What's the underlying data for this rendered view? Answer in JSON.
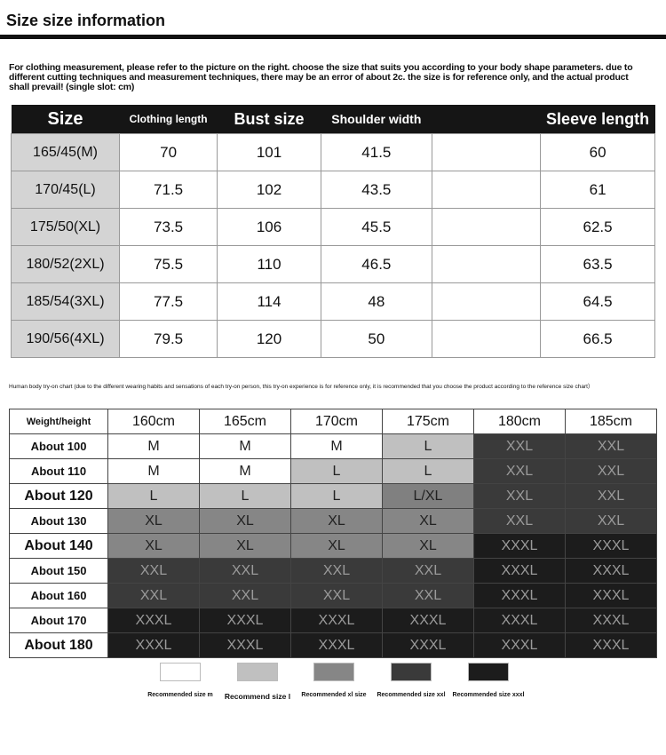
{
  "title": "Size size information",
  "note": "For clothing measurement, please refer to the picture on the right. choose the size that suits you according to your body shape parameters. due to different cutting techniques and measurement techniques, there may be an error of about 2c. the size is for reference only, and the actual product shall prevail! (single slot: cm)",
  "size_table": {
    "headers": [
      "Size",
      "Clothing length",
      "Bust size",
      "Shoulder width",
      "",
      "Sleeve length"
    ],
    "rows": [
      [
        "165/45(M)",
        "70",
        "101",
        "41.5",
        "",
        "60"
      ],
      [
        "170/45(L)",
        "71.5",
        "102",
        "43.5",
        "",
        "61"
      ],
      [
        "175/50(XL)",
        "73.5",
        "106",
        "45.5",
        "",
        "62.5"
      ],
      [
        "180/52(2XL)",
        "75.5",
        "110",
        "46.5",
        "",
        "63.5"
      ],
      [
        "185/54(3XL)",
        "77.5",
        "114",
        "48",
        "",
        "64.5"
      ],
      [
        "190/56(4XL)",
        "79.5",
        "120",
        "50",
        "",
        "66.5"
      ]
    ]
  },
  "note2": "Human body try-on chart (due to the different wearing habits and sensations of each try-on person, this try-on experience is for reference only, it is recommended that you choose the product according to the reference size chart）",
  "tryon": {
    "corner": "Weight/height",
    "heights": [
      "160cm",
      "165cm",
      "170cm",
      "175cm",
      "180cm",
      "185cm"
    ],
    "rows": [
      {
        "label": "About 100",
        "cells": [
          "M",
          "M",
          "M",
          "L",
          "XXL",
          "XXL"
        ]
      },
      {
        "label": "About 110",
        "cells": [
          "M",
          "M",
          "L",
          "L",
          "XXL",
          "XXL"
        ]
      },
      {
        "label": "About 120",
        "cells": [
          "L",
          "L",
          "L",
          "L/XL",
          "XXL",
          "XXL"
        ]
      },
      {
        "label": "About 130",
        "cells": [
          "XL",
          "XL",
          "XL",
          "XL",
          "XXL",
          "XXL"
        ]
      },
      {
        "label": "About 140",
        "cells": [
          "XL",
          "XL",
          "XL",
          "XL",
          "XXXL",
          "XXXL"
        ]
      },
      {
        "label": "About 150",
        "cells": [
          "XXL",
          "XXL",
          "XXL",
          "XXL",
          "XXXL",
          "XXXL"
        ]
      },
      {
        "label": "About 160",
        "cells": [
          "XXL",
          "XXL",
          "XXL",
          "XXL",
          "XXXL",
          "XXXL"
        ]
      },
      {
        "label": "About 170",
        "cells": [
          "XXXL",
          "XXXL",
          "XXXL",
          "XXXL",
          "XXXL",
          "XXXL"
        ]
      },
      {
        "label": "About 180",
        "cells": [
          "XXXL",
          "XXXL",
          "XXXL",
          "XXXL",
          "XXXL",
          "XXXL"
        ]
      }
    ]
  },
  "colors": {
    "M": "#ffffff",
    "L": "#c0c0c0",
    "L/XL": "#808080",
    "XL": "#868686",
    "XXL": "#3a3a3a",
    "XXXL": "#1c1c1c"
  },
  "legend": [
    {
      "label": "Recommended size m",
      "key": "M"
    },
    {
      "label": "Recommend size l",
      "key": "L"
    },
    {
      "label": "Recommended xl size",
      "key": "XL"
    },
    {
      "label": "Recommended size xxl",
      "key": "XXL"
    },
    {
      "label": "Recommended size xxxl",
      "key": "XXXL"
    }
  ]
}
